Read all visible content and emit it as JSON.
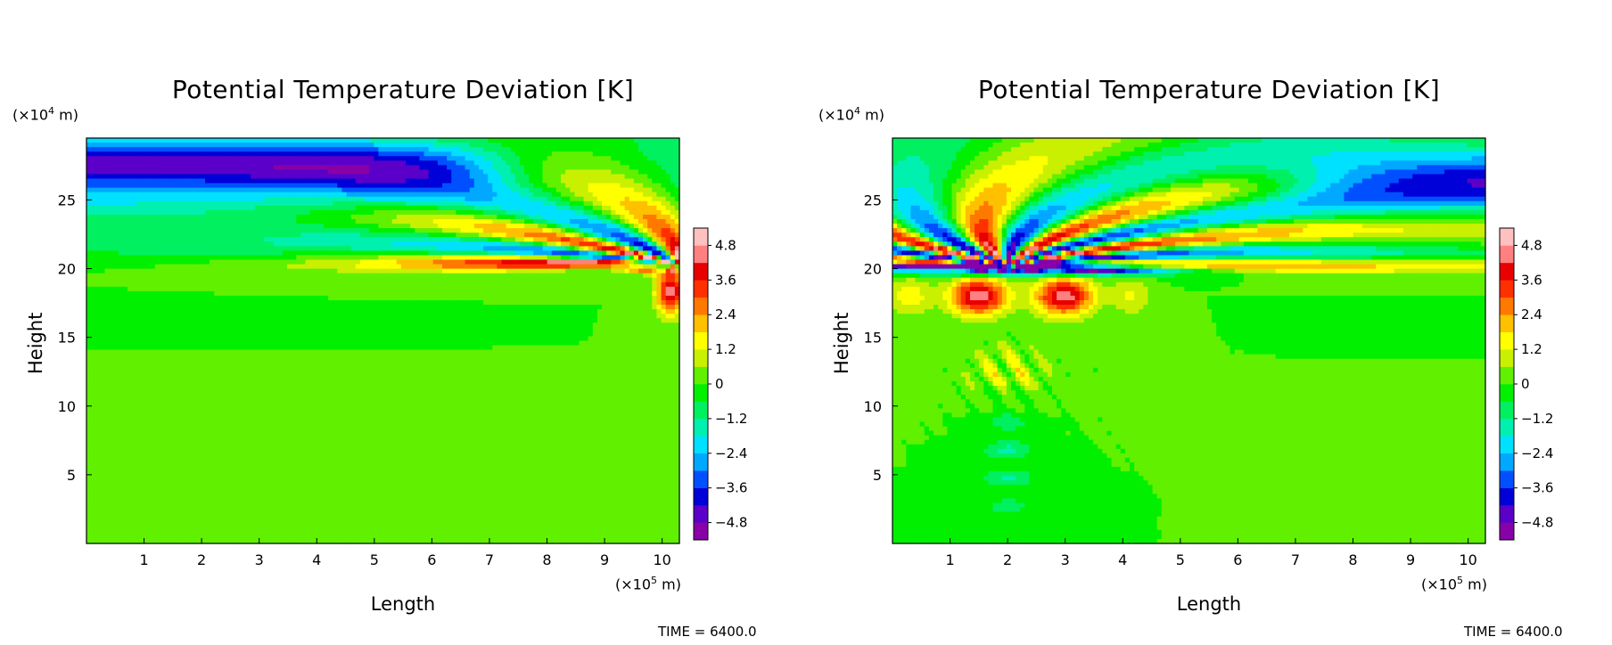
{
  "chart_data": [
    {
      "type": "heatmap",
      "title": "Potential Temperature Deviation [K]",
      "xlabel": "Length",
      "ylabel": "Height",
      "x_unit_prefix": "(×10",
      "x_unit_exp": "5",
      "x_unit_suffix": " m)",
      "y_unit_prefix": "(×10",
      "y_unit_exp": "4",
      "y_unit_suffix": " m)",
      "xticks": [
        "1",
        "2",
        "3",
        "4",
        "5",
        "6",
        "7",
        "8",
        "9",
        "10"
      ],
      "yticks": [
        "5",
        "10",
        "15",
        "20",
        "25"
      ],
      "xlim": [
        0,
        10.3
      ],
      "ylim": [
        0,
        29.5
      ],
      "colorbar_ticks": [
        "4.8",
        "3.6",
        "2.4",
        "1.2",
        "0",
        "-1.2",
        "-2.4",
        "-3.6",
        "-4.8"
      ],
      "colorbar_range": [
        -5.4,
        5.4
      ],
      "footer": "TIME = 6400.0",
      "field": "single-sided: stable layer near height 20 (×10^4 m); strong wave pattern concentrated near right edge (x ≈ 8–10.3); upper layer negative (≈ -4) band around height 26–29 across x 0–7"
    },
    {
      "type": "heatmap",
      "title": "Potential Temperature Deviation [K]",
      "xlabel": "Length",
      "ylabel": "Height",
      "x_unit_prefix": "(×10",
      "x_unit_exp": "5",
      "x_unit_suffix": " m)",
      "y_unit_prefix": "(×10",
      "y_unit_exp": "4",
      "y_unit_suffix": " m)",
      "xticks": [
        "1",
        "2",
        "3",
        "4",
        "5",
        "6",
        "7",
        "8",
        "9",
        "10"
      ],
      "yticks": [
        "5",
        "10",
        "15",
        "20",
        "25"
      ],
      "xlim": [
        0,
        10.3
      ],
      "ylim": [
        0,
        29.5
      ],
      "colorbar_ticks": [
        "4.8",
        "3.6",
        "2.4",
        "1.2",
        "0",
        "-1.2",
        "-2.4",
        "-3.6",
        "-4.8"
      ],
      "colorbar_range": [
        -5.4,
        5.4
      ],
      "footer": "TIME = 6400.0",
      "field": "wave packet centered near x ≈ 2 (×10^5 m): fan of positive/negative lobes above height 20, warm anomalies (≈ +4) at heights 15–20 between x 0–4.5, plume of small anomalies down to the surface near x ≈ 2"
    }
  ],
  "colors": {
    "colormap": [
      "#8800a8",
      "#5a00c8",
      "#0000d8",
      "#0050ff",
      "#00a8ff",
      "#00e0ff",
      "#00f0b0",
      "#00f060",
      "#00f000",
      "#60f000",
      "#c8f000",
      "#ffff00",
      "#ffc000",
      "#ff7800",
      "#ff3000",
      "#e80000",
      "#ff8080",
      "#ffc0c0"
    ]
  }
}
